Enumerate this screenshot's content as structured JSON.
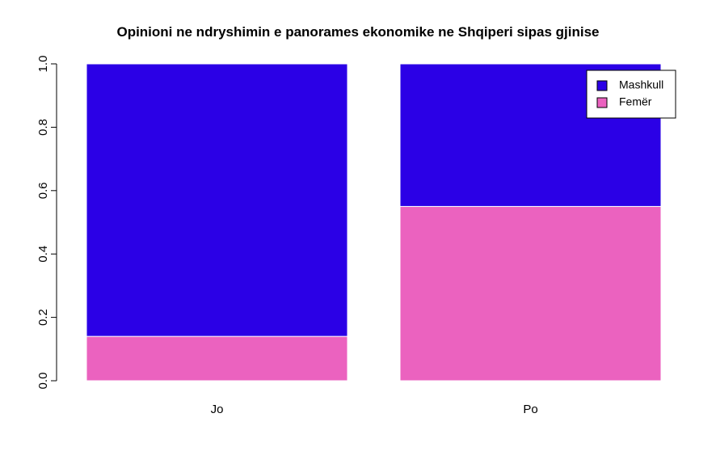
{
  "chart_data": {
    "type": "bar",
    "stacked": true,
    "title": "Opinioni ne ndryshimin e panorames ekonomike ne Shqiperi sipas gjinise",
    "xlabel": "",
    "ylabel": "",
    "categories": [
      "Jo",
      "Po"
    ],
    "series": [
      {
        "name": "Femër",
        "values": [
          0.14,
          0.55
        ],
        "color": "#EB62BF"
      },
      {
        "name": "Mashkull",
        "values": [
          0.86,
          0.45
        ],
        "color": "#2B00E6"
      }
    ],
    "ylim": [
      0,
      1
    ],
    "yticks": [
      "0.0",
      "0.2",
      "0.4",
      "0.6",
      "0.8",
      "1.0"
    ],
    "legend": {
      "placement": "top-right",
      "order": [
        "Mashkull",
        "Femër"
      ]
    },
    "grid": false
  }
}
